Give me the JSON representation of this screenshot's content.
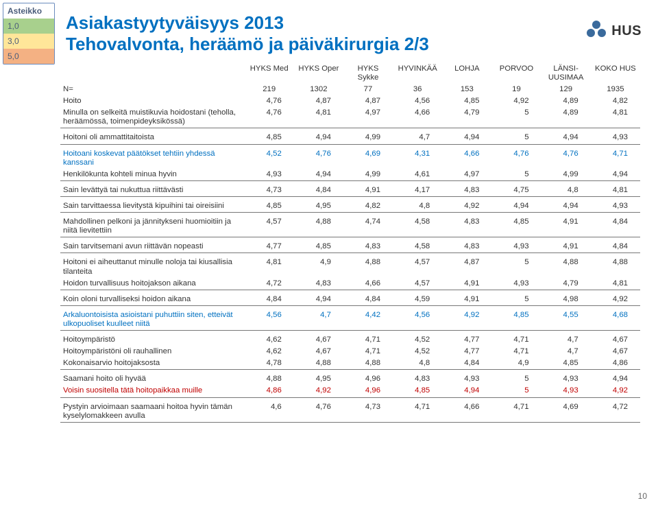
{
  "scale": {
    "title": "Asteikko",
    "items": [
      "1,0",
      "3,0",
      "5,0"
    ],
    "colors": [
      "#a8d08d",
      "#ffe699",
      "#f4b183"
    ]
  },
  "title_line1": "Asiakastyytyväisyys 2013",
  "title_line2": "Tehovalvonta, heräämö ja päiväkirurgia 2/3",
  "logo_text": "HUS",
  "columns": [
    "HYKS Med",
    "HYKS Oper",
    "HYKS Sykke",
    "HYVINKÄÄ",
    "LOHJA",
    "PORVOO",
    "LÄNSI-UUSIMAA",
    "KOKO HUS"
  ],
  "n_label": "N=",
  "n_values": [
    "219",
    "1302",
    "77",
    "36",
    "153",
    "19",
    "129",
    "1935"
  ],
  "groups": [
    {
      "rows": [
        {
          "label": "Hoito",
          "values": [
            "4,76",
            "4,87",
            "4,87",
            "4,56",
            "4,85",
            "4,92",
            "4,89",
            "4,82"
          ],
          "color": "black"
        },
        {
          "label": "Minulla on selkeitä muistikuvia hoidostani (teholla, heräämössä, toimenpideyksikössä)",
          "values": [
            "4,76",
            "4,81",
            "4,97",
            "4,66",
            "4,79",
            "5",
            "4,89",
            "4,81"
          ],
          "color": "black"
        }
      ]
    },
    {
      "rows": [
        {
          "label": "Hoitoni oli ammattitaitoista",
          "values": [
            "4,85",
            "4,94",
            "4,99",
            "4,7",
            "4,94",
            "5",
            "4,94",
            "4,93"
          ],
          "color": "black"
        }
      ]
    },
    {
      "rows": [
        {
          "label": "Hoitoani koskevat päätökset tehtiin yhdessä kanssani",
          "values": [
            "4,52",
            "4,76",
            "4,69",
            "4,31",
            "4,66",
            "4,76",
            "4,76",
            "4,71"
          ],
          "color": "blue"
        },
        {
          "label": "Henkilökunta kohteli minua hyvin",
          "values": [
            "4,93",
            "4,94",
            "4,99",
            "4,61",
            "4,97",
            "5",
            "4,99",
            "4,94"
          ],
          "color": "black"
        }
      ]
    },
    {
      "rows": [
        {
          "label": "Sain levättyä tai nukuttua riittävästi",
          "values": [
            "4,73",
            "4,84",
            "4,91",
            "4,17",
            "4,83",
            "4,75",
            "4,8",
            "4,81"
          ],
          "color": "black"
        }
      ]
    },
    {
      "rows": [
        {
          "label": "Sain tarvittaessa lievitystä kipuihini tai oireisiini",
          "values": [
            "4,85",
            "4,95",
            "4,82",
            "4,8",
            "4,92",
            "4,94",
            "4,94",
            "4,93"
          ],
          "color": "black"
        }
      ]
    },
    {
      "rows": [
        {
          "label": "Mahdollinen pelkoni ja jännitykseni huomioitiin ja niitä lievitettiin",
          "values": [
            "4,57",
            "4,88",
            "4,74",
            "4,58",
            "4,83",
            "4,85",
            "4,91",
            "4,84"
          ],
          "color": "black"
        }
      ]
    },
    {
      "rows": [
        {
          "label": "Sain tarvitsemani avun riittävän nopeasti",
          "values": [
            "4,77",
            "4,85",
            "4,83",
            "4,58",
            "4,83",
            "4,93",
            "4,91",
            "4,84"
          ],
          "color": "black"
        }
      ]
    },
    {
      "rows": [
        {
          "label": "Hoitoni ei aiheuttanut minulle noloja tai kiusallisia tilanteita",
          "values": [
            "4,81",
            "4,9",
            "4,88",
            "4,57",
            "4,87",
            "5",
            "4,88",
            "4,88"
          ],
          "color": "black"
        },
        {
          "label": "Hoidon turvallisuus hoitojakson aikana",
          "values": [
            "4,72",
            "4,83",
            "4,66",
            "4,57",
            "4,91",
            "4,93",
            "4,79",
            "4,81"
          ],
          "color": "black"
        }
      ]
    },
    {
      "rows": [
        {
          "label": "Koin oloni turvalliseksi hoidon aikana",
          "values": [
            "4,84",
            "4,94",
            "4,84",
            "4,59",
            "4,91",
            "5",
            "4,98",
            "4,92"
          ],
          "color": "black"
        }
      ]
    },
    {
      "rows": [
        {
          "label": "Arkaluontoisista asioistani puhuttiin siten, etteivät ulkopuoliset kuulleet niitä",
          "values": [
            "4,56",
            "4,7",
            "4,42",
            "4,56",
            "4,92",
            "4,85",
            "4,55",
            "4,68"
          ],
          "color": "blue"
        }
      ]
    },
    {
      "rows": [
        {
          "label": "Hoitoympäristö",
          "values": [
            "4,62",
            "4,67",
            "4,71",
            "4,52",
            "4,77",
            "4,71",
            "4,7",
            "4,67"
          ],
          "color": "black"
        },
        {
          "label": "Hoitoympäristöni oli rauhallinen",
          "values": [
            "4,62",
            "4,67",
            "4,71",
            "4,52",
            "4,77",
            "4,71",
            "4,7",
            "4,67"
          ],
          "color": "black"
        },
        {
          "label": "Kokonaisarvio hoitojaksosta",
          "values": [
            "4,78",
            "4,88",
            "4,88",
            "4,8",
            "4,84",
            "4,9",
            "4,85",
            "4,86"
          ],
          "color": "black"
        }
      ]
    },
    {
      "rows": [
        {
          "label": "Saamani hoito oli hyvää",
          "values": [
            "4,88",
            "4,95",
            "4,96",
            "4,83",
            "4,93",
            "5",
            "4,93",
            "4,94"
          ],
          "color": "black"
        },
        {
          "label": "Voisin suositella tätä hoitopaikkaa muille",
          "values": [
            "4,86",
            "4,92",
            "4,96",
            "4,85",
            "4,94",
            "5",
            "4,93",
            "4,92"
          ],
          "color": "red"
        }
      ]
    },
    {
      "rows": [
        {
          "label": "Pystyin arvioimaan saamaani hoitoa hyvin tämän kyselylomakkeen avulla",
          "values": [
            "4,6",
            "4,76",
            "4,73",
            "4,71",
            "4,66",
            "4,71",
            "4,69",
            "4,72"
          ],
          "color": "black"
        }
      ]
    }
  ],
  "page_number": "10"
}
